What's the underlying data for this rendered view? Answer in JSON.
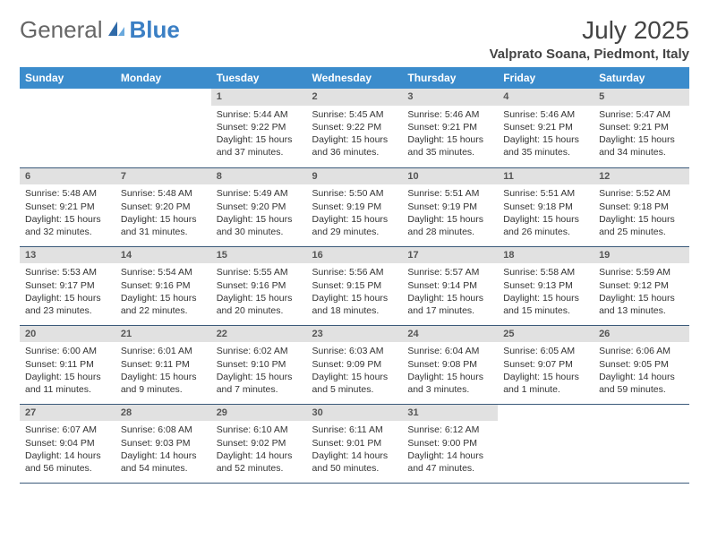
{
  "logo": {
    "text1": "General",
    "text2": "Blue"
  },
  "title": "July 2025",
  "location": "Valprato Soana, Piedmont, Italy",
  "colors": {
    "header_bg": "#3b8ccc",
    "header_text": "#ffffff",
    "daynum_bg": "#e1e1e1",
    "rule": "#3b5a7a",
    "accent": "#3b7fc4"
  },
  "weekdays": [
    "Sunday",
    "Monday",
    "Tuesday",
    "Wednesday",
    "Thursday",
    "Friday",
    "Saturday"
  ],
  "weeks": [
    [
      null,
      null,
      {
        "n": "1",
        "sunrise": "5:44 AM",
        "sunset": "9:22 PM",
        "daylight": "15 hours and 37 minutes."
      },
      {
        "n": "2",
        "sunrise": "5:45 AM",
        "sunset": "9:22 PM",
        "daylight": "15 hours and 36 minutes."
      },
      {
        "n": "3",
        "sunrise": "5:46 AM",
        "sunset": "9:21 PM",
        "daylight": "15 hours and 35 minutes."
      },
      {
        "n": "4",
        "sunrise": "5:46 AM",
        "sunset": "9:21 PM",
        "daylight": "15 hours and 35 minutes."
      },
      {
        "n": "5",
        "sunrise": "5:47 AM",
        "sunset": "9:21 PM",
        "daylight": "15 hours and 34 minutes."
      }
    ],
    [
      {
        "n": "6",
        "sunrise": "5:48 AM",
        "sunset": "9:21 PM",
        "daylight": "15 hours and 32 minutes."
      },
      {
        "n": "7",
        "sunrise": "5:48 AM",
        "sunset": "9:20 PM",
        "daylight": "15 hours and 31 minutes."
      },
      {
        "n": "8",
        "sunrise": "5:49 AM",
        "sunset": "9:20 PM",
        "daylight": "15 hours and 30 minutes."
      },
      {
        "n": "9",
        "sunrise": "5:50 AM",
        "sunset": "9:19 PM",
        "daylight": "15 hours and 29 minutes."
      },
      {
        "n": "10",
        "sunrise": "5:51 AM",
        "sunset": "9:19 PM",
        "daylight": "15 hours and 28 minutes."
      },
      {
        "n": "11",
        "sunrise": "5:51 AM",
        "sunset": "9:18 PM",
        "daylight": "15 hours and 26 minutes."
      },
      {
        "n": "12",
        "sunrise": "5:52 AM",
        "sunset": "9:18 PM",
        "daylight": "15 hours and 25 minutes."
      }
    ],
    [
      {
        "n": "13",
        "sunrise": "5:53 AM",
        "sunset": "9:17 PM",
        "daylight": "15 hours and 23 minutes."
      },
      {
        "n": "14",
        "sunrise": "5:54 AM",
        "sunset": "9:16 PM",
        "daylight": "15 hours and 22 minutes."
      },
      {
        "n": "15",
        "sunrise": "5:55 AM",
        "sunset": "9:16 PM",
        "daylight": "15 hours and 20 minutes."
      },
      {
        "n": "16",
        "sunrise": "5:56 AM",
        "sunset": "9:15 PM",
        "daylight": "15 hours and 18 minutes."
      },
      {
        "n": "17",
        "sunrise": "5:57 AM",
        "sunset": "9:14 PM",
        "daylight": "15 hours and 17 minutes."
      },
      {
        "n": "18",
        "sunrise": "5:58 AM",
        "sunset": "9:13 PM",
        "daylight": "15 hours and 15 minutes."
      },
      {
        "n": "19",
        "sunrise": "5:59 AM",
        "sunset": "9:12 PM",
        "daylight": "15 hours and 13 minutes."
      }
    ],
    [
      {
        "n": "20",
        "sunrise": "6:00 AM",
        "sunset": "9:11 PM",
        "daylight": "15 hours and 11 minutes."
      },
      {
        "n": "21",
        "sunrise": "6:01 AM",
        "sunset": "9:11 PM",
        "daylight": "15 hours and 9 minutes."
      },
      {
        "n": "22",
        "sunrise": "6:02 AM",
        "sunset": "9:10 PM",
        "daylight": "15 hours and 7 minutes."
      },
      {
        "n": "23",
        "sunrise": "6:03 AM",
        "sunset": "9:09 PM",
        "daylight": "15 hours and 5 minutes."
      },
      {
        "n": "24",
        "sunrise": "6:04 AM",
        "sunset": "9:08 PM",
        "daylight": "15 hours and 3 minutes."
      },
      {
        "n": "25",
        "sunrise": "6:05 AM",
        "sunset": "9:07 PM",
        "daylight": "15 hours and 1 minute."
      },
      {
        "n": "26",
        "sunrise": "6:06 AM",
        "sunset": "9:05 PM",
        "daylight": "14 hours and 59 minutes."
      }
    ],
    [
      {
        "n": "27",
        "sunrise": "6:07 AM",
        "sunset": "9:04 PM",
        "daylight": "14 hours and 56 minutes."
      },
      {
        "n": "28",
        "sunrise": "6:08 AM",
        "sunset": "9:03 PM",
        "daylight": "14 hours and 54 minutes."
      },
      {
        "n": "29",
        "sunrise": "6:10 AM",
        "sunset": "9:02 PM",
        "daylight": "14 hours and 52 minutes."
      },
      {
        "n": "30",
        "sunrise": "6:11 AM",
        "sunset": "9:01 PM",
        "daylight": "14 hours and 50 minutes."
      },
      {
        "n": "31",
        "sunrise": "6:12 AM",
        "sunset": "9:00 PM",
        "daylight": "14 hours and 47 minutes."
      },
      null,
      null
    ]
  ],
  "labels": {
    "sunrise": "Sunrise: ",
    "sunset": "Sunset: ",
    "daylight": "Daylight: "
  }
}
